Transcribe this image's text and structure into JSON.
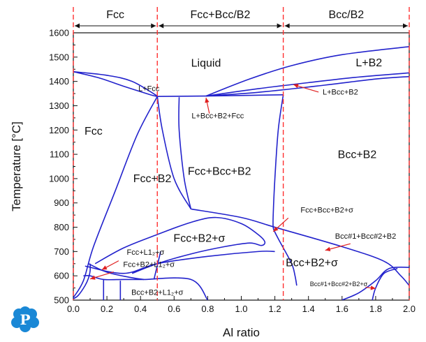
{
  "logo": {
    "letter": "P",
    "color": "#1a88d6"
  },
  "chart_data": {
    "type": "phase-diagram",
    "xlabel": "Al ratio",
    "ylabel": "Temperature [°C]",
    "xlim": [
      0.0,
      2.0
    ],
    "ylim": [
      500,
      1600
    ],
    "xticks": [
      "0.0",
      "0.2",
      "0.4",
      "0.6",
      "0.8",
      "1.0",
      "1.2",
      "1.4",
      "1.6",
      "1.8",
      "2.0"
    ],
    "yticks": [
      "500",
      "600",
      "700",
      "800",
      "900",
      "1000",
      "1100",
      "1200",
      "1300",
      "1400",
      "1500",
      "1600"
    ],
    "grid": false,
    "line_color": "#2222cc",
    "marker_color": "#ff3030",
    "composition_markers": [
      0.0,
      0.5,
      1.25,
      2.0
    ],
    "composition_bands": [
      {
        "label": "Fcc",
        "x0": 0.0,
        "x1": 0.5
      },
      {
        "label": "Fcc+Bcc/B2",
        "x0": 0.5,
        "x1": 1.25
      },
      {
        "label": "Bcc/B2",
        "x0": 1.25,
        "x1": 2.0
      }
    ],
    "regions": [
      {
        "id": "liquid",
        "label": "Liquid",
        "x": 0.79,
        "y": 1460,
        "size": "big"
      },
      {
        "id": "l-b2",
        "label": "L+B2",
        "x": 1.76,
        "y": 1462,
        "size": "big"
      },
      {
        "id": "l-fcc",
        "label": "L+Fcc",
        "x": 0.45,
        "y": 1360,
        "size": "small"
      },
      {
        "id": "fcc",
        "label": "Fcc",
        "x": 0.12,
        "y": 1180,
        "size": "big"
      },
      {
        "id": "fcc-b2",
        "label": "Fcc+B2",
        "x": 0.47,
        "y": 985,
        "size": "big"
      },
      {
        "id": "fcc-bcc-b2",
        "label": "Fcc+Bcc+B2",
        "x": 0.87,
        "y": 1015,
        "size": "big"
      },
      {
        "id": "bcc-b2",
        "label": "Bcc+B2",
        "x": 1.69,
        "y": 1085,
        "size": "big"
      },
      {
        "id": "fcc-b2-sigma",
        "label": "Fcc+B2+σ",
        "x": 0.75,
        "y": 740,
        "size": "big"
      },
      {
        "id": "bcc-b2-sigma",
        "label": "Bcc+B2+σ",
        "x": 1.42,
        "y": 640,
        "size": "big"
      },
      {
        "id": "bcc-b2-l12",
        "label": "Bcc+B2+L1₂+σ",
        "x": 0.5,
        "y": 522,
        "size": "small"
      }
    ],
    "annotations": [
      {
        "label": "L+Bcc+B2+Fcc",
        "text_x": 0.86,
        "text_y": 1248,
        "arrow_from": [
          0.81,
          1268
        ],
        "arrow_to": [
          0.79,
          1333
        ]
      },
      {
        "label": "L+Bcc+B2",
        "text_x": 1.59,
        "text_y": 1346,
        "arrow_from": [
          1.46,
          1356
        ],
        "arrow_to": [
          1.31,
          1387
        ]
      },
      {
        "label": "Fcc+Bcc+B2+σ",
        "text_x": 1.51,
        "text_y": 860,
        "arrow_from": [
          1.28,
          838
        ],
        "arrow_to": [
          1.19,
          782
        ]
      },
      {
        "label": "Bcc#1+Bcc#2+B2",
        "text_x": 1.74,
        "text_y": 753,
        "arrow_from": [
          1.65,
          732
        ],
        "arrow_to": [
          1.5,
          705
        ]
      },
      {
        "label": "Bcc#1+Bcc#2+B2+σ",
        "text_x": 1.58,
        "text_y": 557,
        "arrow_from": [
          1.74,
          553
        ],
        "arrow_to": [
          1.8,
          548
        ]
      },
      {
        "label": "Fcc+L1₂+σ",
        "text_x": 0.43,
        "text_y": 687,
        "arrow_from": [
          0.27,
          662
        ],
        "arrow_to": [
          0.17,
          625
        ]
      },
      {
        "label": "Fcc+B2+L1₂+σ",
        "text_x": 0.45,
        "text_y": 636,
        "arrow_from": [
          0.24,
          616
        ],
        "arrow_to": [
          0.1,
          587
        ]
      }
    ],
    "boundaries": [
      {
        "name": "liquidus-left",
        "points": [
          [
            0.0,
            1440
          ],
          [
            0.2,
            1425
          ],
          [
            0.35,
            1400
          ],
          [
            0.5,
            1340
          ]
        ]
      },
      {
        "name": "solidus-left",
        "points": [
          [
            0.0,
            1440
          ],
          [
            0.15,
            1415
          ],
          [
            0.3,
            1380
          ],
          [
            0.45,
            1347
          ],
          [
            0.5,
            1338
          ]
        ]
      },
      {
        "name": "liquidus-right-upper",
        "points": [
          [
            0.79,
            1340
          ],
          [
            1.05,
            1410
          ],
          [
            1.3,
            1465
          ],
          [
            1.6,
            1510
          ],
          [
            2.0,
            1543
          ]
        ]
      },
      {
        "name": "liquidus-right-lower",
        "points": [
          [
            0.79,
            1340
          ],
          [
            1.1,
            1370
          ],
          [
            1.4,
            1395
          ],
          [
            1.7,
            1418
          ],
          [
            2.0,
            1435
          ]
        ]
      },
      {
        "name": "b2-solvus-high",
        "points": [
          [
            0.79,
            1340
          ],
          [
            1.1,
            1355
          ],
          [
            1.5,
            1385
          ],
          [
            1.8,
            1410
          ],
          [
            2.0,
            1420
          ]
        ]
      },
      {
        "name": "peritectic-line",
        "points": [
          [
            0.5,
            1338
          ],
          [
            0.79,
            1340
          ],
          [
            1.25,
            1345
          ]
        ]
      },
      {
        "name": "fcc-solvus",
        "points": [
          [
            0.0,
            510
          ],
          [
            0.06,
            580
          ],
          [
            0.12,
            720
          ],
          [
            0.25,
            950
          ],
          [
            0.38,
            1180
          ],
          [
            0.5,
            1338
          ]
        ]
      },
      {
        "name": "fcc-b2-boundary",
        "points": [
          [
            0.5,
            1338
          ],
          [
            0.53,
            1200
          ],
          [
            0.6,
            1000
          ],
          [
            0.7,
            875
          ]
        ]
      },
      {
        "name": "bcc-left",
        "points": [
          [
            0.63,
            1335
          ],
          [
            0.63,
            1200
          ],
          [
            0.66,
            1000
          ],
          [
            0.7,
            875
          ]
        ]
      },
      {
        "name": "bcc-right",
        "points": [
          [
            1.25,
            1345
          ],
          [
            1.22,
            1200
          ],
          [
            1.2,
            1000
          ],
          [
            1.19,
            850
          ],
          [
            1.19,
            800
          ],
          [
            1.2,
            780
          ],
          [
            1.23,
            740
          ],
          [
            1.3,
            650
          ],
          [
            1.32,
            600
          ],
          [
            1.33,
            560
          ]
        ]
      },
      {
        "name": "sigma-top",
        "points": [
          [
            0.7,
            875
          ],
          [
            1.0,
            840
          ],
          [
            1.2,
            800
          ],
          [
            1.6,
            720
          ],
          [
            1.85,
            660
          ],
          [
            1.95,
            600
          ],
          [
            2.0,
            560
          ]
        ]
      },
      {
        "name": "sigma-dome",
        "points": [
          [
            0.13,
            650
          ],
          [
            0.3,
            715
          ],
          [
            0.5,
            770
          ],
          [
            0.7,
            820
          ],
          [
            0.85,
            840
          ],
          [
            1.0,
            815
          ],
          [
            1.1,
            770
          ],
          [
            1.14,
            740
          ],
          [
            1.12,
            725
          ],
          [
            1.05,
            735
          ],
          [
            0.9,
            720
          ],
          [
            0.7,
            690
          ],
          [
            0.5,
            650
          ],
          [
            0.35,
            610
          ]
        ]
      },
      {
        "name": "sigma-lower",
        "points": [
          [
            0.07,
            640
          ],
          [
            0.3,
            610
          ],
          [
            0.5,
            650
          ],
          [
            0.8,
            680
          ],
          [
            1.1,
            700
          ],
          [
            1.2,
            700
          ]
        ]
      },
      {
        "name": "l12-left",
        "points": [
          [
            0.1,
            650
          ],
          [
            0.1,
            620
          ],
          [
            0.09,
            590
          ],
          [
            0.07,
            560
          ],
          [
            0.03,
            520
          ],
          [
            0.0,
            505
          ]
        ]
      },
      {
        "name": "l12-top",
        "points": [
          [
            0.09,
            650
          ],
          [
            0.2,
            615
          ],
          [
            0.35,
            592
          ],
          [
            0.42,
            585
          ]
        ]
      },
      {
        "name": "l12-mid",
        "points": [
          [
            0.06,
            600
          ],
          [
            0.1,
            600
          ],
          [
            0.18,
            585
          ],
          [
            0.3,
            585
          ],
          [
            0.42,
            585
          ]
        ]
      },
      {
        "name": "l12-verticals",
        "points": [
          [
            0.18,
            585
          ],
          [
            0.18,
            500
          ]
        ]
      },
      {
        "name": "l12-vertical-2",
        "points": [
          [
            0.28,
            580
          ],
          [
            0.28,
            500
          ]
        ]
      },
      {
        "name": "b2-bottom",
        "points": [
          [
            0.42,
            585
          ],
          [
            0.7,
            585
          ],
          [
            0.8,
            500
          ]
        ]
      },
      {
        "name": "bcc2-dome",
        "points": [
          [
            1.6,
            500
          ],
          [
            1.7,
            530
          ],
          [
            1.8,
            580
          ],
          [
            1.88,
            630
          ],
          [
            2.0,
            635
          ]
        ]
      },
      {
        "name": "bcc2-inner",
        "points": [
          [
            1.78,
            500
          ],
          [
            1.8,
            550
          ],
          [
            1.85,
            610
          ],
          [
            1.93,
            630
          ]
        ]
      },
      {
        "name": "sigma-vertical",
        "points": [
          [
            0.48,
            585
          ],
          [
            0.52,
            700
          ]
        ]
      }
    ]
  }
}
